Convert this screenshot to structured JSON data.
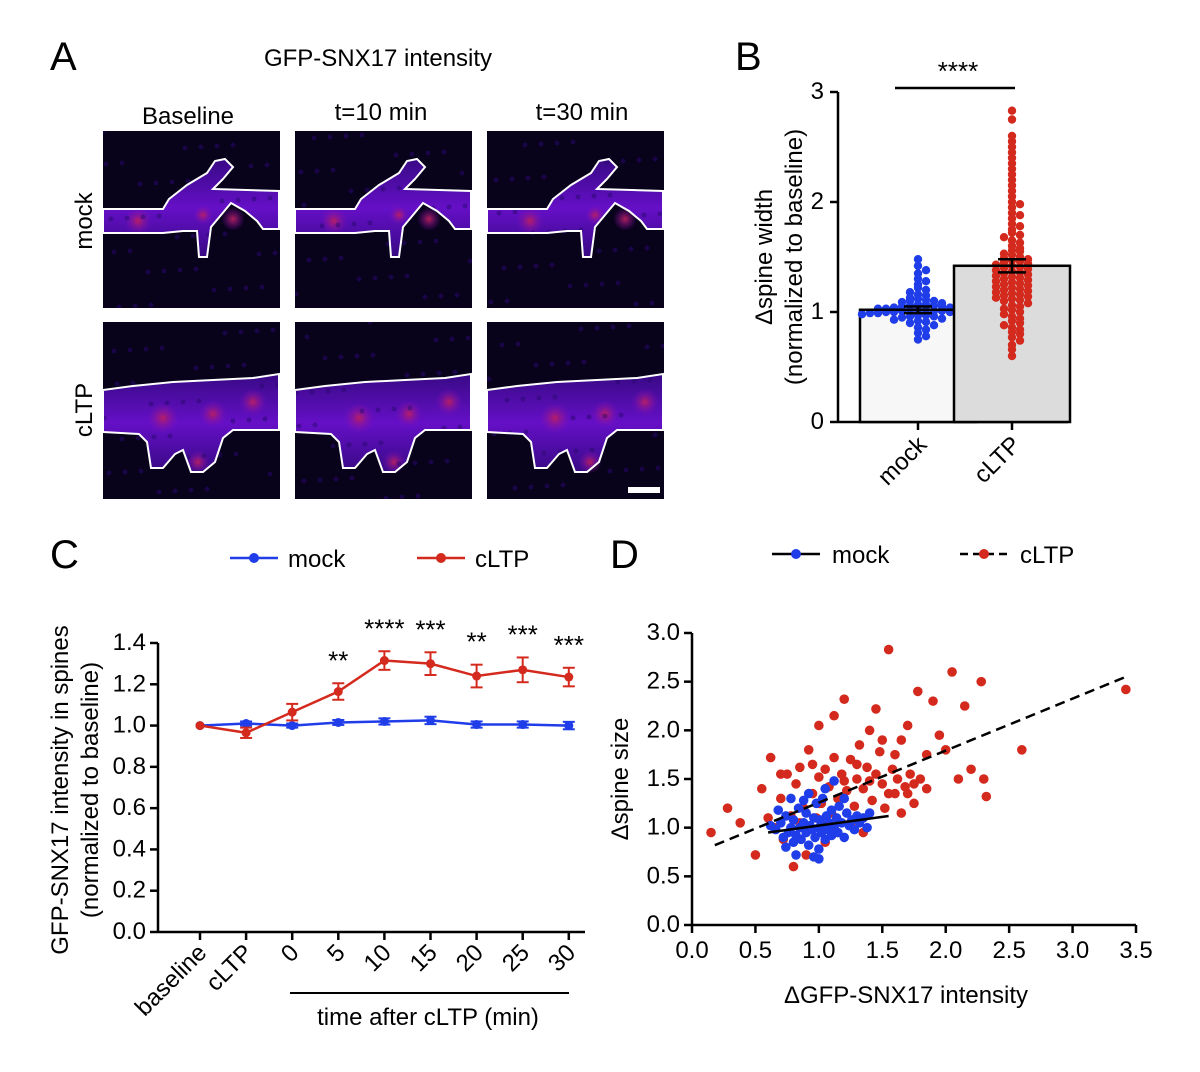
{
  "panelA": {
    "letter": "A",
    "title": "GFP-SNX17 intensity",
    "columns": [
      "Baseline",
      "t=10 min",
      "t=30 min"
    ],
    "rows": [
      "mock",
      "cLTP"
    ]
  },
  "panelB": {
    "letter": "B"
  },
  "panelC": {
    "letter": "C"
  },
  "panelD": {
    "letter": "D"
  },
  "colors": {
    "mock": "#1f3de8",
    "cLTP": "#d42a1e",
    "barMock": "#f7f7f7",
    "barCLTP": "#dcdcdc"
  },
  "chart_data": [
    {
      "id": "B",
      "type": "bar",
      "categories": [
        "mock",
        "cLTP"
      ],
      "values": [
        1.02,
        1.42
      ],
      "errors": [
        0.03,
        0.06
      ],
      "ylabel": [
        "Δspine width",
        "(normalized to baseline)"
      ],
      "ylim": [
        0,
        3
      ],
      "yticks": [
        0,
        1,
        2,
        3
      ],
      "significance": "****",
      "points": {
        "mock": [
          1.48,
          1.42,
          1.38,
          1.35,
          1.3,
          1.28,
          1.25,
          1.22,
          1.2,
          1.18,
          1.16,
          1.15,
          1.13,
          1.12,
          1.11,
          1.1,
          1.1,
          1.09,
          1.08,
          1.07,
          1.07,
          1.06,
          1.06,
          1.05,
          1.05,
          1.04,
          1.04,
          1.03,
          1.03,
          1.03,
          1.02,
          1.02,
          1.02,
          1.01,
          1.01,
          1.01,
          1.0,
          1.0,
          1.0,
          1.0,
          0.99,
          0.99,
          0.99,
          0.98,
          0.98,
          0.97,
          0.97,
          0.96,
          0.96,
          0.95,
          0.94,
          0.93,
          0.92,
          0.91,
          0.9,
          0.88,
          0.86,
          0.84,
          0.81,
          0.78,
          0.75
        ],
        "cLTP": [
          2.83,
          2.75,
          2.6,
          2.55,
          2.5,
          2.45,
          2.4,
          2.35,
          2.3,
          2.25,
          2.2,
          2.15,
          2.1,
          2.05,
          2.0,
          1.98,
          1.95,
          1.9,
          1.88,
          1.85,
          1.8,
          1.78,
          1.75,
          1.72,
          1.7,
          1.68,
          1.65,
          1.63,
          1.6,
          1.58,
          1.56,
          1.55,
          1.53,
          1.52,
          1.5,
          1.49,
          1.48,
          1.47,
          1.46,
          1.45,
          1.44,
          1.43,
          1.42,
          1.41,
          1.4,
          1.39,
          1.38,
          1.37,
          1.36,
          1.35,
          1.34,
          1.33,
          1.32,
          1.31,
          1.3,
          1.29,
          1.28,
          1.27,
          1.26,
          1.25,
          1.24,
          1.23,
          1.22,
          1.21,
          1.2,
          1.19,
          1.18,
          1.17,
          1.16,
          1.15,
          1.14,
          1.13,
          1.12,
          1.11,
          1.1,
          1.08,
          1.06,
          1.05,
          1.03,
          1.02,
          1.0,
          0.98,
          0.96,
          0.94,
          0.92,
          0.9,
          0.88,
          0.86,
          0.84,
          0.82,
          0.8,
          0.77,
          0.74,
          0.7,
          0.66,
          0.6
        ]
      }
    },
    {
      "id": "C",
      "type": "line",
      "categories": [
        "baseline",
        "cLTP",
        "0",
        "5",
        "10",
        "15",
        "20",
        "25",
        "30"
      ],
      "series": [
        {
          "name": "mock",
          "values": [
            1.0,
            1.01,
            1.0,
            1.015,
            1.02,
            1.025,
            1.005,
            1.005,
            1.0
          ],
          "errors": [
            0.0,
            0.01,
            0.01,
            0.012,
            0.015,
            0.018,
            0.015,
            0.015,
            0.018
          ]
        },
        {
          "name": "cLTP",
          "values": [
            1.0,
            0.965,
            1.065,
            1.165,
            1.315,
            1.3,
            1.24,
            1.27,
            1.235
          ],
          "errors": [
            0.0,
            0.025,
            0.04,
            0.04,
            0.045,
            0.055,
            0.055,
            0.06,
            0.045
          ]
        }
      ],
      "ylabel": [
        "GFP-SNX17 intensity in spines",
        "(normalized to baseline)"
      ],
      "xlabel": "time after cLTP (min)",
      "ylim": [
        0,
        1.4
      ],
      "yticks": [
        "0.0",
        "0.2",
        "0.4",
        "0.6",
        "0.8",
        "1.0",
        "1.2",
        "1.4"
      ],
      "significance": [
        "",
        "",
        "",
        "**",
        "****",
        "***",
        "**",
        "***",
        "***"
      ],
      "legend": "top"
    },
    {
      "id": "D",
      "type": "scatter",
      "xlabel": "ΔGFP-SNX17 intensity",
      "ylabel": "Δspine size",
      "xlim": [
        0,
        3.5
      ],
      "ylim": [
        0,
        3
      ],
      "xticks": [
        "0.0",
        "0.5",
        "1.0",
        "1.5",
        "2.0",
        "2.5",
        "3.0",
        "3.5"
      ],
      "yticks": [
        "0.0",
        "0.5",
        "1.0",
        "1.5",
        "2.0",
        "2.5",
        "3.0"
      ],
      "legend": "top",
      "series": [
        {
          "name": "mock",
          "fit": [
            [
              0.6,
              0.95
            ],
            [
              1.55,
              1.12
            ]
          ],
          "points": [
            [
              0.62,
              1.02
            ],
            [
              0.66,
              0.98
            ],
            [
              0.7,
              1.05
            ],
            [
              0.72,
              0.9
            ],
            [
              0.74,
              1.12
            ],
            [
              0.76,
              0.95
            ],
            [
              0.78,
              1.0
            ],
            [
              0.8,
              0.85
            ],
            [
              0.8,
              1.08
            ],
            [
              0.82,
              0.92
            ],
            [
              0.84,
              1.2
            ],
            [
              0.85,
              1.0
            ],
            [
              0.86,
              0.88
            ],
            [
              0.88,
              1.05
            ],
            [
              0.9,
              0.95
            ],
            [
              0.9,
              1.15
            ],
            [
              0.92,
              0.82
            ],
            [
              0.93,
              1.02
            ],
            [
              0.95,
              0.98
            ],
            [
              0.96,
              1.1
            ],
            [
              0.97,
              0.9
            ],
            [
              0.98,
              1.25
            ],
            [
              1.0,
              1.0
            ],
            [
              1.0,
              0.78
            ],
            [
              1.01,
              1.08
            ],
            [
              1.02,
              0.95
            ],
            [
              1.03,
              1.3
            ],
            [
              1.04,
              1.02
            ],
            [
              1.05,
              0.88
            ],
            [
              1.06,
              1.12
            ],
            [
              1.07,
              0.98
            ],
            [
              1.08,
              1.05
            ],
            [
              1.1,
              1.18
            ],
            [
              1.1,
              0.92
            ],
            [
              1.12,
              1.0
            ],
            [
              1.14,
              1.1
            ],
            [
              1.15,
              0.95
            ],
            [
              1.16,
              1.22
            ],
            [
              1.18,
              1.05
            ],
            [
              1.2,
              0.9
            ],
            [
              1.22,
              1.15
            ],
            [
              1.24,
              1.02
            ],
            [
              1.26,
              1.08
            ],
            [
              1.28,
              0.98
            ],
            [
              1.3,
              1.12
            ],
            [
              1.32,
              1.05
            ],
            [
              1.35,
              1.1
            ],
            [
              1.38,
              1.0
            ],
            [
              1.4,
              1.15
            ],
            [
              0.78,
              1.3
            ],
            [
              0.68,
              1.18
            ],
            [
              0.92,
              1.35
            ],
            [
              0.82,
              0.72
            ],
            [
              1.0,
              0.68
            ],
            [
              0.96,
              0.7
            ],
            [
              1.12,
              1.48
            ],
            [
              0.88,
              1.28
            ],
            [
              1.05,
              1.4
            ],
            [
              0.74,
              0.8
            ],
            [
              1.2,
              1.3
            ]
          ]
        },
        {
          "name": "cLTP",
          "fit": [
            [
              0.18,
              0.82
            ],
            [
              3.42,
              2.55
            ]
          ],
          "points": [
            [
              0.15,
              0.95
            ],
            [
              0.28,
              1.2
            ],
            [
              0.38,
              1.05
            ],
            [
              0.5,
              0.72
            ],
            [
              0.55,
              1.4
            ],
            [
              0.62,
              1.72
            ],
            [
              0.65,
              1.0
            ],
            [
              0.7,
              1.3
            ],
            [
              0.72,
              0.88
            ],
            [
              0.75,
              1.55
            ],
            [
              0.78,
              1.12
            ],
            [
              0.8,
              0.6
            ],
            [
              0.82,
              1.45
            ],
            [
              0.85,
              1.62
            ],
            [
              0.88,
              1.2
            ],
            [
              0.9,
              0.98
            ],
            [
              0.92,
              1.8
            ],
            [
              0.95,
              1.35
            ],
            [
              0.98,
              1.1
            ],
            [
              1.0,
              1.52
            ],
            [
              1.0,
              2.05
            ],
            [
              1.02,
              1.25
            ],
            [
              1.05,
              1.6
            ],
            [
              1.08,
              1.42
            ],
            [
              1.1,
              1.15
            ],
            [
              1.12,
              2.15
            ],
            [
              1.15,
              1.3
            ],
            [
              1.18,
              1.55
            ],
            [
              1.2,
              2.32
            ],
            [
              1.22,
              1.38
            ],
            [
              1.25,
              1.7
            ],
            [
              1.28,
              1.22
            ],
            [
              1.3,
              1.5
            ],
            [
              1.32,
              1.85
            ],
            [
              1.35,
              1.4
            ],
            [
              1.38,
              1.62
            ],
            [
              1.4,
              2.0
            ],
            [
              1.42,
              1.28
            ],
            [
              1.45,
              1.55
            ],
            [
              1.48,
              1.78
            ],
            [
              1.5,
              1.45
            ],
            [
              1.52,
              1.2
            ],
            [
              1.55,
              2.83
            ],
            [
              1.58,
              1.6
            ],
            [
              1.6,
              1.35
            ],
            [
              1.62,
              1.5
            ],
            [
              1.65,
              1.9
            ],
            [
              1.68,
              1.42
            ],
            [
              1.7,
              2.05
            ],
            [
              1.72,
              1.55
            ],
            [
              1.75,
              1.25
            ],
            [
              1.78,
              2.4
            ],
            [
              1.8,
              1.5
            ],
            [
              1.85,
              1.75
            ],
            [
              1.9,
              2.3
            ],
            [
              1.95,
              1.95
            ],
            [
              2.0,
              1.8
            ],
            [
              2.05,
              2.6
            ],
            [
              2.1,
              1.5
            ],
            [
              2.15,
              2.25
            ],
            [
              2.2,
              1.6
            ],
            [
              2.28,
              2.5
            ],
            [
              2.3,
              1.5
            ],
            [
              2.32,
              1.32
            ],
            [
              2.6,
              1.8
            ],
            [
              3.42,
              2.42
            ],
            [
              1.12,
              1.72
            ],
            [
              1.3,
              1.65
            ],
            [
              1.55,
              1.35
            ],
            [
              1.65,
              1.15
            ],
            [
              1.75,
              1.45
            ],
            [
              0.95,
              1.65
            ],
            [
              0.7,
              1.55
            ],
            [
              1.45,
              2.22
            ],
            [
              1.6,
              1.75
            ],
            [
              1.05,
              0.85
            ],
            [
              0.9,
              0.72
            ],
            [
              1.25,
              1.05
            ],
            [
              1.35,
              0.95
            ],
            [
              1.5,
              1.9
            ],
            [
              0.6,
              1.1
            ],
            [
              1.7,
              1.35
            ],
            [
              1.85,
              1.4
            ],
            [
              1.4,
              1.48
            ],
            [
              1.2,
              1.48
            ],
            [
              1.0,
              1.25
            ],
            [
              0.85,
              1.05
            ]
          ]
        }
      ]
    }
  ]
}
